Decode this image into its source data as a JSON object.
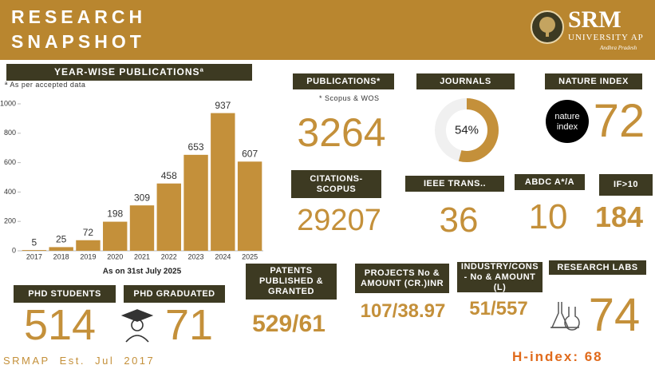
{
  "header": {
    "title_lines": [
      "RESEARCH",
      "SNAPSHOT"
    ],
    "logo": {
      "name": "SRM",
      "subtitle": "UNIVERSITY AP",
      "region": "Andhra Pradesh"
    }
  },
  "chart_data": {
    "type": "bar",
    "title": "YEAR-WISE PUBLICATIONSª",
    "footnote": "ª As per accepted data",
    "categories": [
      "2017",
      "2018",
      "2019",
      "2020",
      "2021",
      "2022",
      "2023",
      "2024",
      "2025"
    ],
    "values": [
      5,
      25,
      72,
      198,
      309,
      458,
      653,
      937,
      607
    ],
    "color": "#c4903a",
    "ylim": [
      0,
      1000
    ],
    "yticks": [
      0,
      200,
      400,
      600,
      800,
      1000
    ],
    "caption": "As on 31st July 2025"
  },
  "metrics": {
    "publications": {
      "label": "PUBLICATIONS*",
      "note": "* Scopus & WOS",
      "value": 3264
    },
    "journals": {
      "label": "JOURNALS",
      "value": 54,
      "value_label": "54%"
    },
    "nature_index": {
      "label": "NATURE INDEX",
      "logo": [
        "nature",
        "index"
      ],
      "value": 72
    },
    "citations": {
      "label": "CITATIONS-SCOPUS",
      "value": 29207
    },
    "ieee": {
      "label": "IEEE TRANS..",
      "value": 36
    },
    "abdc": {
      "label": "ABDC A*/A",
      "value": 10
    },
    "if10": {
      "label": "IF>10",
      "value": 184
    },
    "patents": {
      "label": "PATENTS PUBLISHED & GRANTED",
      "value": "529/61"
    },
    "projects": {
      "label": "PROJECTS No & AMOUNT (CR.)INR",
      "value": "107/38.97"
    },
    "industry": {
      "label": "INDUSTRY/CONS - No & AMOUNT (L)",
      "value": "51/557"
    },
    "labs": {
      "label": "RESEARCH LABS",
      "value": 74
    },
    "phd_students": {
      "label": "PHD STUDENTS",
      "value": 514
    },
    "phd_graduated": {
      "label": "PHD GRADUATED",
      "value": 71
    }
  },
  "footer": {
    "left": "SRMAP Est. Jul 2017",
    "right": "H-index: 68"
  }
}
